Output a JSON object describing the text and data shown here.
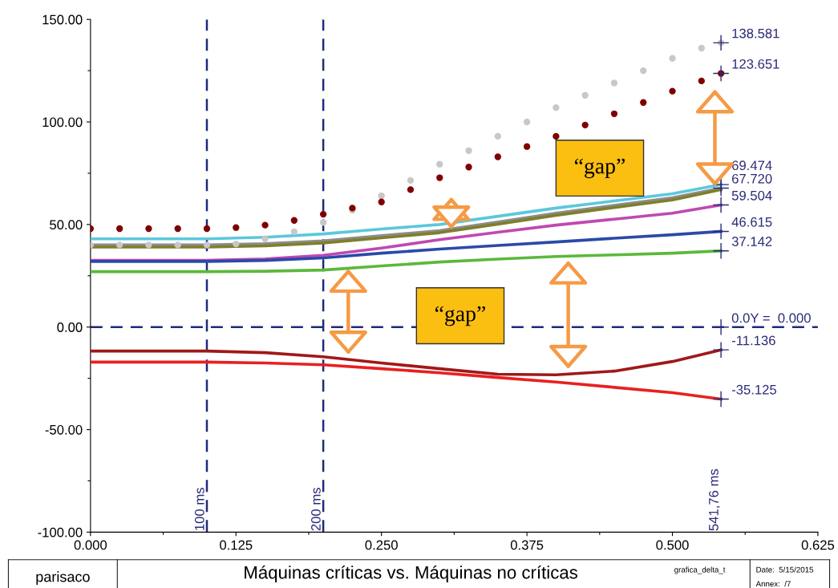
{
  "chart_data": {
    "type": "line",
    "title": "Máquinas críticas vs. Máquinas no críticas",
    "x": [
      0,
      0.05,
      0.1,
      0.15,
      0.2,
      0.25,
      0.3,
      0.35,
      0.4,
      0.45,
      0.5,
      0.54176
    ],
    "series": [
      {
        "color": "#5bc8dc",
        "values": [
          43,
          43,
          43,
          43.8,
          45.4,
          47.8,
          50,
          54,
          58,
          61.5,
          65,
          69.474
        ],
        "value_labels": [
          null,
          null,
          null,
          null,
          null,
          null,
          null,
          null,
          null,
          null,
          null,
          "69.474"
        ]
      },
      {
        "color": "#8c8c8c",
        "values": [
          40,
          40,
          40,
          40.6,
          42,
          44.5,
          47,
          51.2,
          55.5,
          59.3,
          63,
          67.72
        ],
        "value_labels": [
          null,
          null,
          null,
          null,
          null,
          null,
          null,
          null,
          null,
          null,
          null,
          "67.720"
        ]
      },
      {
        "color": "#7f7f2a",
        "values": [
          39,
          39,
          39,
          39.6,
          41,
          43.5,
          46,
          50.2,
          54.5,
          58.3,
          62,
          67
        ]
      },
      {
        "color": "#c048b0",
        "values": [
          32.5,
          32.5,
          32.5,
          33.2,
          35,
          38.5,
          42.6,
          46.2,
          49.7,
          52.6,
          55.5,
          59.504
        ],
        "value_labels": [
          null,
          null,
          null,
          null,
          null,
          null,
          null,
          null,
          null,
          null,
          null,
          "59.504"
        ]
      },
      {
        "color": "#2a4aa8",
        "values": [
          32,
          32,
          32,
          32.5,
          33.7,
          36,
          38,
          39.8,
          41.5,
          43.3,
          45,
          46.615
        ],
        "value_labels": [
          null,
          null,
          null,
          null,
          null,
          null,
          null,
          null,
          null,
          null,
          null,
          "46.615"
        ]
      },
      {
        "color": "#5cb83c",
        "values": [
          27,
          27,
          27,
          27.2,
          27.8,
          29.8,
          31.7,
          33.1,
          34.4,
          35.2,
          36,
          37.142
        ],
        "value_labels": [
          null,
          null,
          null,
          null,
          null,
          null,
          null,
          null,
          null,
          null,
          null,
          "37.142"
        ]
      },
      {
        "color": "#a01818",
        "values": [
          -11.7,
          -11.7,
          -11.7,
          -12.5,
          -14.5,
          -17.5,
          -20.3,
          -23,
          -23.3,
          -21.5,
          -16.8,
          -11.136
        ],
        "value_labels": [
          null,
          null,
          null,
          null,
          null,
          null,
          null,
          null,
          null,
          null,
          null,
          "-11.136"
        ]
      },
      {
        "color": "#e82020",
        "values": [
          -17.1,
          -17.1,
          -17.1,
          -17.5,
          -18.4,
          -20.3,
          -22.3,
          -24.6,
          -26.8,
          -29.4,
          -32,
          -35.125
        ],
        "value_labels": [
          null,
          null,
          null,
          null,
          null,
          null,
          null,
          null,
          null,
          null,
          null,
          "-35.125"
        ]
      },
      {
        "type": "scatter",
        "marker": "circle",
        "color": "#c8c8c8",
        "x": [
          0,
          0.025,
          0.05,
          0.075,
          0.1,
          0.125,
          0.15,
          0.175,
          0.2,
          0.225,
          0.25,
          0.275,
          0.3,
          0.325,
          0.35,
          0.375,
          0.4,
          0.425,
          0.45,
          0.475,
          0.5,
          0.525,
          0.54176
        ],
        "values": [
          40,
          40,
          40,
          40,
          40,
          40.5,
          43,
          46.5,
          51,
          57,
          64,
          71.5,
          79.4,
          86,
          93,
          100,
          107,
          113,
          119,
          125,
          131,
          136,
          138.581
        ],
        "value_labels": [
          null,
          null,
          null,
          null,
          null,
          null,
          null,
          null,
          null,
          null,
          null,
          null,
          null,
          null,
          null,
          null,
          null,
          null,
          null,
          null,
          null,
          null,
          "138.581"
        ]
      },
      {
        "type": "scatter",
        "marker": "circle",
        "color": "#800000",
        "x": [
          0,
          0.025,
          0.05,
          0.075,
          0.1,
          0.125,
          0.15,
          0.175,
          0.2,
          0.225,
          0.25,
          0.275,
          0.3,
          0.325,
          0.35,
          0.375,
          0.4,
          0.425,
          0.45,
          0.475,
          0.5,
          0.525,
          0.54176
        ],
        "values": [
          48,
          48,
          48,
          48,
          48,
          48.5,
          49.7,
          52,
          55,
          58,
          61,
          67,
          72.8,
          78,
          83,
          88,
          93,
          98.5,
          104,
          109.5,
          115,
          120,
          123.651
        ],
        "value_labels": [
          null,
          null,
          null,
          null,
          null,
          null,
          null,
          null,
          null,
          null,
          null,
          null,
          null,
          null,
          null,
          null,
          null,
          null,
          null,
          null,
          null,
          null,
          "123.651"
        ]
      }
    ],
    "xlim": [
      0,
      0.625
    ],
    "xticks": [
      {
        "value": 0,
        "label": "0.000"
      },
      {
        "value": 0.0625,
        "label": null
      },
      {
        "value": 0.125,
        "label": "0.125"
      },
      {
        "value": 0.1875,
        "label": null
      },
      {
        "value": 0.25,
        "label": "0.250"
      },
      {
        "value": 0.3125,
        "label": null
      },
      {
        "value": 0.375,
        "label": "0.375"
      },
      {
        "value": 0.4375,
        "label": null
      },
      {
        "value": 0.5,
        "label": "0.500"
      },
      {
        "value": 0.5625,
        "label": null
      },
      {
        "value": 0.625,
        "label": "0.625"
      }
    ],
    "ylim": [
      -100,
      150
    ],
    "yticks": [
      {
        "value": -100,
        "label": "-100.00"
      },
      {
        "value": -75,
        "label": null
      },
      {
        "value": -50,
        "label": "-50.00"
      },
      {
        "value": -25,
        "label": null
      },
      {
        "value": 0,
        "label": "0.00"
      },
      {
        "value": 25,
        "label": null
      },
      {
        "value": 50,
        "label": "50.00"
      },
      {
        "value": 75,
        "label": null
      },
      {
        "value": 100,
        "label": "100.00"
      },
      {
        "value": 125,
        "label": null
      },
      {
        "value": 150,
        "label": "150.00"
      }
    ],
    "ref_lines": [
      {
        "axis": "x",
        "value": 0.1,
        "label": "100 ms",
        "color": "#1f2a7a",
        "line_style": "dashed"
      },
      {
        "axis": "x",
        "value": 0.2,
        "label": "200 ms",
        "color": "#1f2a7a",
        "line_style": "dashed"
      },
      {
        "axis": "y",
        "value": 0,
        "label": "0.0Y =  0.000",
        "color": "#1f2a7a",
        "line_style": "dashed"
      }
    ],
    "annotations": [
      "541,76 ms",
      "“gap”",
      "“gap”",
      "parisaco",
      "grafica_delta_t",
      "Date:  5/15/2015",
      "Annex:  /7"
    ],
    "grid": false,
    "line_style": "solid",
    "marker": "none"
  }
}
